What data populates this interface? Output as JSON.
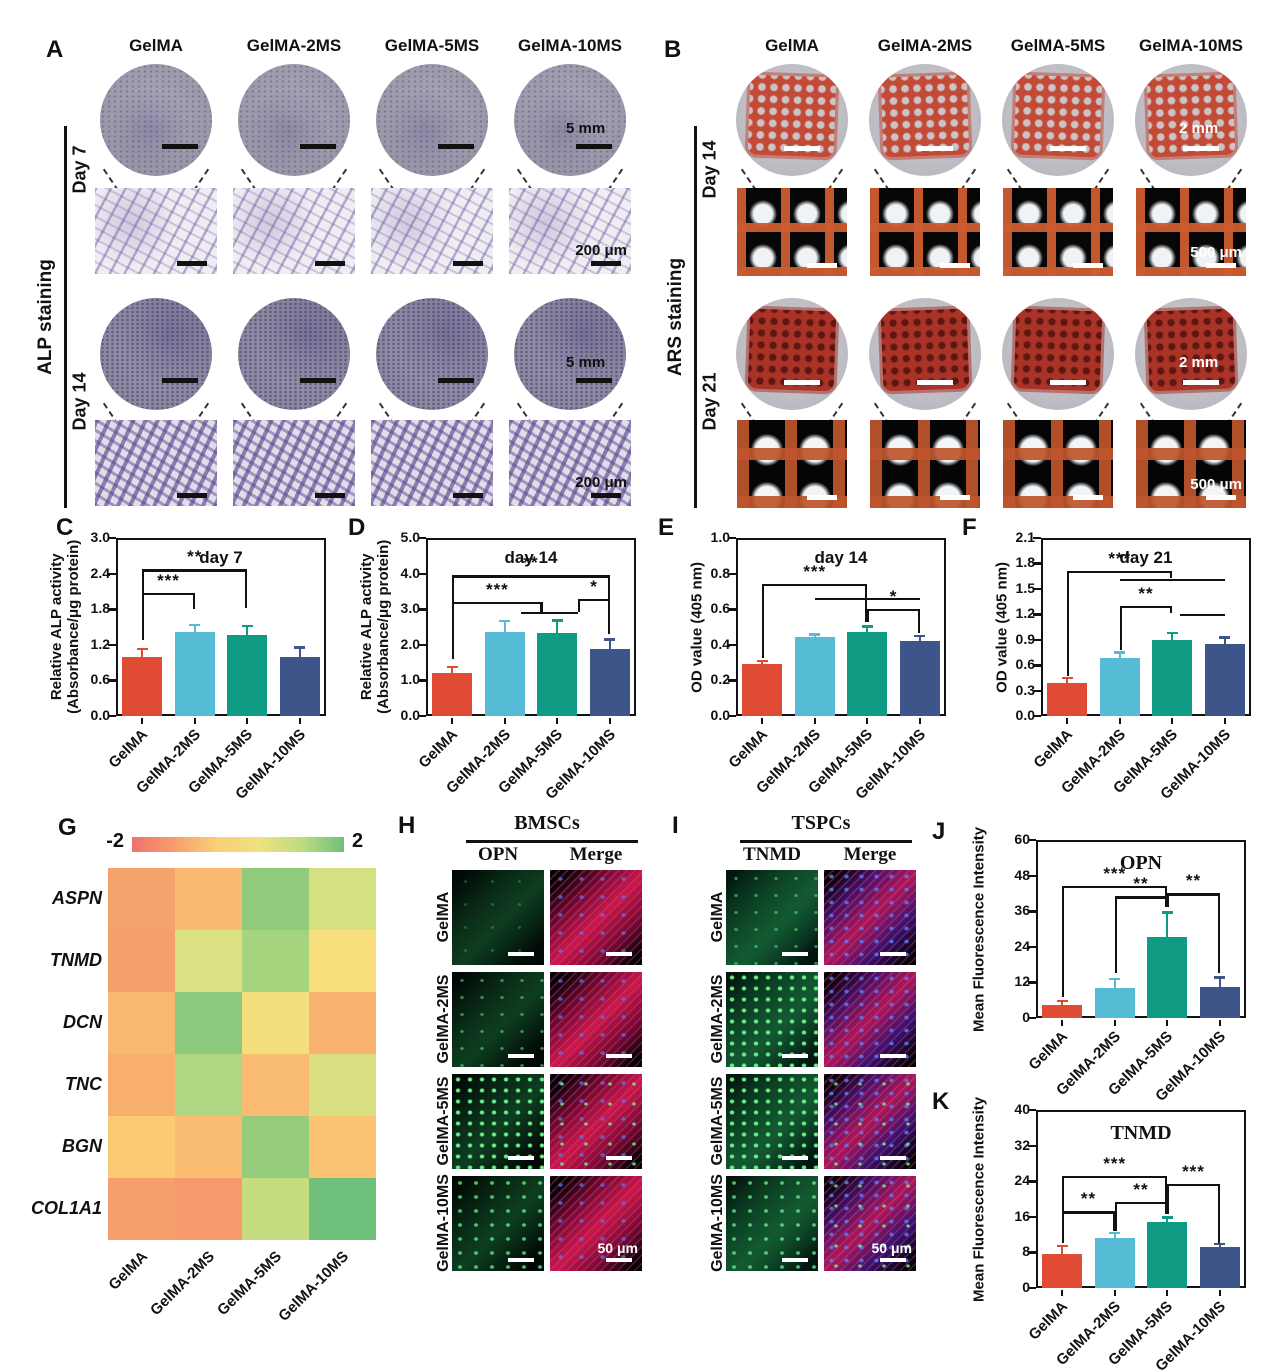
{
  "figure": {
    "groups": [
      "GelMA",
      "GelMA-2MS",
      "GelMA-5MS",
      "GelMA-10MS"
    ],
    "panel_letters": [
      "A",
      "B",
      "C",
      "D",
      "E",
      "F",
      "G",
      "H",
      "I",
      "J",
      "K"
    ]
  },
  "bar_colors": [
    "#E04B33",
    "#56BCD5",
    "#0F9B84",
    "#3D5588"
  ],
  "panelA": {
    "letter": "A",
    "side_label": "ALP staining",
    "columns": [
      "GelMA",
      "GelMA-2MS",
      "GelMA-5MS",
      "GelMA-10MS"
    ],
    "rows": [
      "Day 7",
      "Day 14"
    ],
    "well_scale": "5 mm",
    "micro_scale": "200 μm"
  },
  "panelB": {
    "letter": "B",
    "side_label": "ARS staining",
    "columns": [
      "GelMA",
      "GelMA-2MS",
      "GelMA-5MS",
      "GelMA-10MS"
    ],
    "rows": [
      "Day 14",
      "Day 21"
    ],
    "well_scale": "2 mm",
    "micro_scale": "500 μm"
  },
  "panelG": {
    "letter": "G",
    "legend_min": "-2",
    "legend_max": "2",
    "genes": [
      "ASPN",
      "TNMD",
      "DCN",
      "TNC",
      "BGN",
      "COL1A1"
    ],
    "groups": [
      "GelMA",
      "GelMA-2MS",
      "GelMA-5MS",
      "GelMA-10MS"
    ],
    "values": [
      [
        -1.0,
        -0.6,
        1.1,
        0.4
      ],
      [
        -1.0,
        0.3,
        0.7,
        0.15
      ],
      [
        -0.55,
        1.1,
        0.1,
        -0.6
      ],
      [
        -0.7,
        0.7,
        -0.45,
        0.35
      ],
      [
        -0.2,
        -0.45,
        0.9,
        -0.25
      ],
      [
        -1.05,
        -1.15,
        0.5,
        1.3
      ]
    ],
    "cell_colors": [
      [
        "#F5A26C",
        "#F9B971",
        "#8FCB7B",
        "#D5E081"
      ],
      [
        "#F5A06B",
        "#DBE183",
        "#A6D37E",
        "#F9DE7E"
      ],
      [
        "#F9B870",
        "#8BCA7C",
        "#F4DF7F",
        "#F9B16E"
      ],
      [
        "#F8AF6E",
        "#AFD680",
        "#F9BC72",
        "#DAE082"
      ],
      [
        "#FACA75",
        "#F9BC71",
        "#95CD7C",
        "#FAC473"
      ],
      [
        "#F79F6C",
        "#F69A6B",
        "#C6DC81",
        "#6FC07B"
      ]
    ]
  },
  "panelH": {
    "letter": "H",
    "header": "BMSCs",
    "col_headers": [
      "OPN",
      "Merge"
    ],
    "rows": [
      "GelMA",
      "GelMA-2MS",
      "GelMA-5MS",
      "GelMA-10MS"
    ],
    "scale_label": "50 μm"
  },
  "panelI": {
    "letter": "I",
    "header": "TSPCs",
    "col_headers": [
      "TNMD",
      "Merge"
    ],
    "rows": [
      "GelMA",
      "GelMA-2MS",
      "GelMA-5MS",
      "GelMA-10MS"
    ],
    "scale_label": "50 μm"
  },
  "chart_data": [
    {
      "panel": "C",
      "type": "bar",
      "title": "day 7",
      "ylabel": [
        "Relative ALP activity",
        "(Absorbance/μg protein)"
      ],
      "ylim": [
        0,
        3.0
      ],
      "yticks": [
        0.0,
        0.6,
        1.2,
        1.8,
        2.4,
        3.0
      ],
      "ydecimals": 1,
      "categories": [
        "GelMA",
        "GelMA-2MS",
        "GelMA-5MS",
        "GelMA-10MS"
      ],
      "values": [
        1.0,
        1.42,
        1.37,
        1.0
      ],
      "errors": [
        0.13,
        0.12,
        0.15,
        0.16
      ],
      "sig": [
        {
          "i": 0,
          "j": 1,
          "y": 2.07,
          "legs": [
            1.28,
            1.8
          ],
          "label": "***"
        },
        {
          "i": 0,
          "j": 2,
          "y": 2.47,
          "legs": [
            2.07,
            1.82
          ],
          "label": "**"
        }
      ]
    },
    {
      "panel": "D",
      "type": "bar",
      "title": "day 14",
      "ylabel": [
        "Relative ALP activity",
        "(Absorbance/μg protein)"
      ],
      "ylim": [
        0,
        5.0
      ],
      "yticks": [
        0.0,
        1.0,
        2.0,
        3.0,
        4.0,
        5.0
      ],
      "ydecimals": 1,
      "categories": [
        "GelMA",
        "GelMA-2MS",
        "GelMA-5MS",
        "GelMA-10MS"
      ],
      "values": [
        1.22,
        2.36,
        2.33,
        1.87
      ],
      "errors": [
        0.16,
        0.31,
        0.36,
        0.28
      ],
      "sig": [
        {
          "i": 0,
          "j": 1.72,
          "y": 3.2,
          "legs": [
            1.6,
            2.92
          ],
          "label": "***"
        },
        {
          "i": 1.3,
          "j": 2.4,
          "y": 2.92,
          "legs": null,
          "label": ""
        },
        {
          "i": 2.4,
          "j": 3,
          "y": 3.3,
          "legs": [
            2.92,
            2.3
          ],
          "label": "*"
        },
        {
          "i": 0,
          "j": 3,
          "y": 3.95,
          "legs": [
            1.6,
            2.3
          ],
          "label": "**"
        }
      ]
    },
    {
      "panel": "E",
      "type": "bar",
      "title": "day 14",
      "ylabel": [
        "OD value (405 nm)"
      ],
      "ylim": [
        0,
        1.0
      ],
      "yticks": [
        0.0,
        0.2,
        0.4,
        0.6,
        0.8,
        1.0
      ],
      "ydecimals": 1,
      "categories": [
        "GelMA",
        "GelMA-2MS",
        "GelMA-5MS",
        "GelMA-10MS"
      ],
      "values": [
        0.29,
        0.445,
        0.47,
        0.42
      ],
      "errors": [
        0.02,
        0.015,
        0.035,
        0.03
      ],
      "sig": [
        {
          "i": 0,
          "j": 2,
          "y": 0.74,
          "legs": [
            0.325,
            0.53
          ],
          "label": "***"
        },
        {
          "i": 1,
          "j": 3,
          "y": 0.665,
          "legs": null,
          "label": ""
        },
        {
          "i": 2,
          "j": 3,
          "y": 0.6,
          "legs": [
            0.53,
            0.465
          ],
          "label": "*"
        }
      ]
    },
    {
      "panel": "F",
      "type": "bar",
      "title": "day 21",
      "ylabel": [
        "OD value (405 nm)"
      ],
      "ylim": [
        0,
        2.1
      ],
      "yticks": [
        0.0,
        0.3,
        0.6,
        0.9,
        1.2,
        1.5,
        1.8,
        2.1
      ],
      "ydecimals": 1,
      "categories": [
        "GelMA",
        "GelMA-2MS",
        "GelMA-5MS",
        "GelMA-10MS"
      ],
      "values": [
        0.39,
        0.69,
        0.9,
        0.85
      ],
      "errors": [
        0.06,
        0.06,
        0.085,
        0.08
      ],
      "sig": [
        {
          "i": 0,
          "j": 2,
          "y": 1.71,
          "legs": [
            0.47,
            1.63
          ],
          "label": "***"
        },
        {
          "i": 1,
          "j": 3,
          "y": 1.62,
          "legs": null,
          "label": ""
        },
        {
          "i": 1,
          "j": 2,
          "y": 1.3,
          "legs": [
            0.78,
            1.21
          ],
          "label": "**"
        },
        {
          "i": 2.15,
          "j": 3,
          "y": 1.2,
          "legs": null,
          "label": ""
        }
      ]
    },
    {
      "panel": "J",
      "type": "bar",
      "title": "OPN",
      "ylabel": [
        "Mean Fluorescence Intensity"
      ],
      "ylim": [
        0,
        60
      ],
      "yticks": [
        0,
        12,
        24,
        36,
        48,
        60
      ],
      "ydecimals": 0,
      "categories": [
        "GelMA",
        "GelMA-2MS",
        "GelMA-5MS",
        "GelMA-10MS"
      ],
      "values": [
        4.3,
        10.2,
        27.2,
        10.6
      ],
      "errors": [
        1.5,
        3.1,
        8.4,
        3.1
      ],
      "sig": [
        {
          "i": 0,
          "j": 2,
          "y": 44.5,
          "legs": [
            7,
            37.5
          ],
          "label": "***"
        },
        {
          "i": 1,
          "j": 2,
          "y": 41,
          "legs": [
            15,
            37.5
          ],
          "label": "**"
        },
        {
          "i": 2,
          "j": 3,
          "y": 42,
          "legs": [
            37.5,
            15
          ],
          "label": "**"
        }
      ]
    },
    {
      "panel": "K",
      "type": "bar",
      "title": "TNMD",
      "ylabel": [
        "Mean Fluorescence Intensity"
      ],
      "ylim": [
        0,
        40
      ],
      "yticks": [
        0,
        8,
        16,
        24,
        32,
        40
      ],
      "ydecimals": 0,
      "categories": [
        "GelMA",
        "GelMA-2MS",
        "GelMA-5MS",
        "GelMA-10MS"
      ],
      "values": [
        7.7,
        11.2,
        14.9,
        9.2
      ],
      "errors": [
        1.8,
        1.2,
        1.0,
        0.8
      ],
      "sig": [
        {
          "i": 0,
          "j": 1,
          "y": 17.2,
          "legs": [
            10,
            12.8
          ],
          "label": "**"
        },
        {
          "i": 0,
          "j": 2,
          "y": 25.2,
          "legs": [
            10,
            16.6
          ],
          "label": "***"
        },
        {
          "i": 1,
          "j": 2,
          "y": 19.4,
          "legs": [
            12.8,
            16.6
          ],
          "label": "**"
        },
        {
          "i": 2,
          "j": 3,
          "y": 23.4,
          "legs": [
            16.6,
            10
          ],
          "label": "***"
        }
      ]
    }
  ]
}
